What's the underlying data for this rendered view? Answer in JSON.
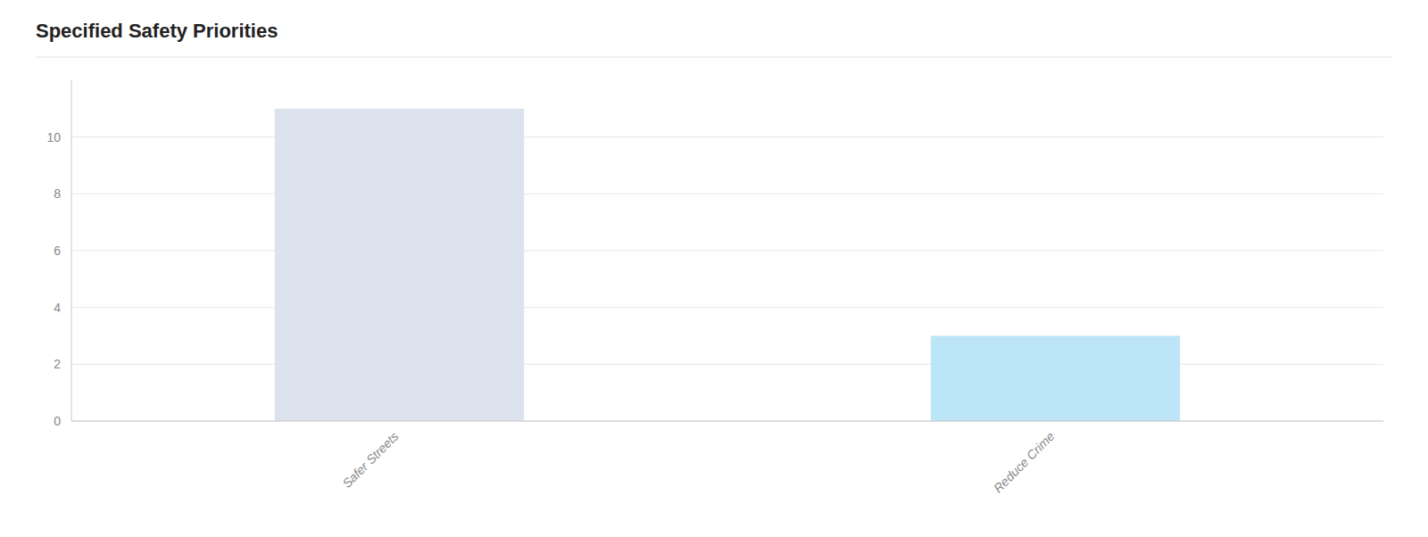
{
  "chart_data": {
    "type": "bar",
    "title": "Specified Safety Priorities",
    "categories": [
      "Safer Streets",
      "Reduce Crime"
    ],
    "values": [
      11,
      3
    ],
    "colors": [
      "#dce3ef",
      "#bde5f8"
    ],
    "ylim": [
      0,
      12
    ],
    "yticks": [
      0,
      2,
      4,
      6,
      8,
      10
    ],
    "grid": true
  }
}
